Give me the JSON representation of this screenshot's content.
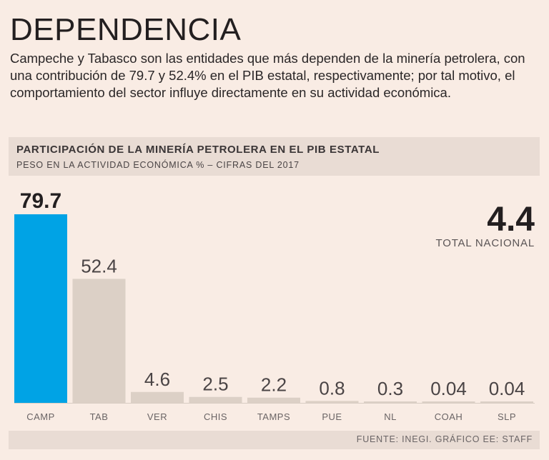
{
  "header": {
    "title": "DEPENDENCIA",
    "intro": "Campeche y Tabasco son las entidades que más dependen de la minería petrolera, con una contribución de 79.7 y 52.4% en el PIB estatal, respectivamente; por tal motivo, el comportamiento del sector influye directamente en su actividad económica."
  },
  "chart_data": {
    "type": "bar",
    "title": "PARTICIPACIÓN DE LA MINERÍA PETROLERA EN EL PIB ESTATAL",
    "subtitle": "PESO EN LA ACTIVIDAD ECONÓMICA % – CIFRAS DEL 2017",
    "categories": [
      "CAMP",
      "TAB",
      "VER",
      "CHIS",
      "TAMPS",
      "PUE",
      "NL",
      "COAH",
      "SLP"
    ],
    "values": [
      79.7,
      52.4,
      4.6,
      2.5,
      2.2,
      0.8,
      0.3,
      0.04,
      0.04
    ],
    "value_labels": [
      "79.7",
      "52.4",
      "4.6",
      "2.5",
      "2.2",
      "0.8",
      "0.3",
      "0.04",
      "0.04"
    ],
    "ylim": [
      0,
      80
    ],
    "xlabel": "",
    "ylabel": "",
    "colors": {
      "highlight": "#00a3e5",
      "default": "#dcd0c6",
      "baseline": "#d8ccc3"
    }
  },
  "total": {
    "value": "4.4",
    "label": "TOTAL NACIONAL"
  },
  "footer": {
    "source": "FUENTE: INEGI. GRÁFICO EE: STAFF"
  }
}
